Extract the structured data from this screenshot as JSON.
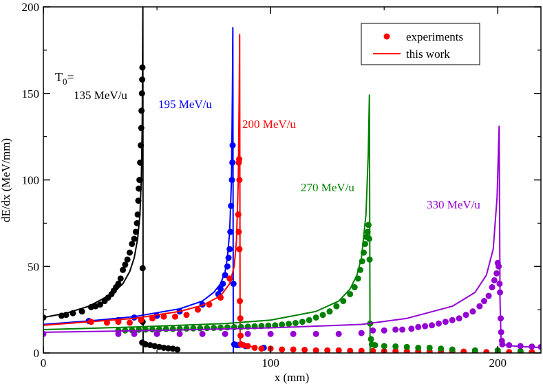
{
  "chart_data": {
    "type": "scatter",
    "title": "",
    "xlabel": "x (mm)",
    "ylabel": "dE/dx (MeV/mm)",
    "xlim": [
      0,
      219
    ],
    "ylim": [
      0,
      200
    ],
    "xticks": [
      0,
      100,
      200
    ],
    "xminor": [
      50,
      150
    ],
    "yticks": [
      0,
      50,
      100,
      150,
      200
    ],
    "yminor": [
      25,
      75,
      125,
      175
    ],
    "grid": false,
    "legend": {
      "placement": "top-right",
      "entries": [
        {
          "label": "experiments",
          "marker": "dot",
          "color": "#ff0000"
        },
        {
          "label": "this work",
          "marker": "line",
          "color": "#ff0000"
        }
      ]
    },
    "annotations": {
      "t0_prefix": "T",
      "t0_sub": "0",
      "t0_suffix": "="
    },
    "series": [
      {
        "label": "135 MeV/u",
        "color": "#000000",
        "theory": [
          [
            0,
            20.5
          ],
          [
            10,
            23
          ],
          [
            20,
            27
          ],
          [
            30,
            34
          ],
          [
            35,
            40
          ],
          [
            38,
            47
          ],
          [
            40,
            55
          ],
          [
            41.5,
            66
          ],
          [
            42.5,
            80
          ],
          [
            43.1,
            100
          ],
          [
            43.5,
            130
          ],
          [
            43.8,
            200
          ],
          [
            43.9,
            0
          ]
        ],
        "experiments": [
          [
            0,
            20.5
          ],
          [
            8,
            21.5
          ],
          [
            10,
            22
          ],
          [
            13,
            23
          ],
          [
            17,
            24
          ],
          [
            21,
            26.5
          ],
          [
            23,
            27
          ],
          [
            25,
            28
          ],
          [
            27,
            30
          ],
          [
            28.5,
            32
          ],
          [
            30,
            34
          ],
          [
            31,
            36
          ],
          [
            32,
            38
          ],
          [
            33,
            40
          ],
          [
            34,
            43
          ],
          [
            35,
            48
          ],
          [
            36,
            51
          ],
          [
            37,
            54
          ],
          [
            38,
            58
          ],
          [
            39,
            63
          ],
          [
            40,
            66
          ],
          [
            40.7,
            70
          ],
          [
            41.2,
            75
          ],
          [
            41.5,
            80
          ],
          [
            41.8,
            88
          ],
          [
            42,
            95
          ],
          [
            42.3,
            100
          ],
          [
            42.6,
            110
          ],
          [
            42.9,
            120
          ],
          [
            43.1,
            130
          ],
          [
            43.2,
            140
          ],
          [
            43.4,
            150
          ],
          [
            43.5,
            158
          ],
          [
            43.6,
            165
          ],
          [
            43.7,
            49
          ],
          [
            43.7,
            18
          ],
          [
            43.5,
            6
          ],
          [
            45,
            5
          ],
          [
            47,
            4.5
          ],
          [
            49,
            4
          ],
          [
            51,
            3.5
          ],
          [
            53,
            3
          ],
          [
            55,
            2.7
          ],
          [
            57,
            2.5
          ],
          [
            59,
            2
          ]
        ]
      },
      {
        "label": "195 MeV/u",
        "color": "#0000ff",
        "theory": [
          [
            0,
            16.5
          ],
          [
            20,
            18.5
          ],
          [
            40,
            21
          ],
          [
            60,
            25.5
          ],
          [
            70,
            30
          ],
          [
            75,
            35
          ],
          [
            78,
            40
          ],
          [
            80,
            47
          ],
          [
            81,
            55
          ],
          [
            82,
            70
          ],
          [
            82.8,
            100
          ],
          [
            83.2,
            150
          ],
          [
            83.4,
            188
          ],
          [
            83.6,
            0
          ]
        ],
        "experiments": [
          [
            20,
            18.5
          ],
          [
            33,
            19
          ],
          [
            40,
            20.5
          ],
          [
            50,
            21.5
          ],
          [
            60,
            24
          ],
          [
            70,
            28
          ],
          [
            77,
            34
          ],
          [
            78,
            37
          ],
          [
            79,
            40
          ],
          [
            80,
            45
          ],
          [
            81,
            50
          ],
          [
            81.5,
            55
          ],
          [
            82,
            60
          ],
          [
            82.3,
            70
          ],
          [
            82.6,
            85
          ],
          [
            83,
            100
          ],
          [
            83.2,
            110
          ],
          [
            83.3,
            120
          ],
          [
            83.7,
            40
          ],
          [
            84,
            5
          ],
          [
            85,
            4.5
          ],
          [
            86,
            4.5
          ],
          [
            89,
            4
          ],
          [
            97,
            3
          ]
        ]
      },
      {
        "label": "200 MeV/u",
        "color": "#ff0000",
        "theory": [
          [
            0,
            16
          ],
          [
            20,
            18
          ],
          [
            40,
            20
          ],
          [
            60,
            24
          ],
          [
            70,
            27.5
          ],
          [
            78,
            33
          ],
          [
            82,
            40
          ],
          [
            84,
            50
          ],
          [
            85,
            65
          ],
          [
            85.8,
            100
          ],
          [
            86.2,
            150
          ],
          [
            86.4,
            184
          ],
          [
            86.6,
            5
          ],
          [
            88,
            4.5
          ],
          [
            92,
            3.5
          ]
        ],
        "experiments": [
          [
            21,
            18
          ],
          [
            28,
            17.5
          ],
          [
            33,
            18
          ],
          [
            38,
            17.5
          ],
          [
            43,
            19
          ],
          [
            48,
            20
          ],
          [
            53,
            21
          ],
          [
            58,
            21
          ],
          [
            63,
            22
          ],
          [
            68,
            25
          ],
          [
            73,
            28
          ],
          [
            78,
            32
          ],
          [
            82,
            43
          ],
          [
            86,
            110
          ],
          [
            86.2,
            112
          ],
          [
            86.3,
            100
          ],
          [
            85.8,
            80
          ],
          [
            86,
            70
          ],
          [
            86.3,
            60
          ],
          [
            86.5,
            30
          ],
          [
            86.7,
            20
          ],
          [
            86.8,
            10
          ],
          [
            87,
            5
          ],
          [
            88,
            4.5
          ],
          [
            90,
            4
          ],
          [
            93,
            3
          ],
          [
            96,
            2.5
          ],
          [
            100,
            2.5
          ],
          [
            105,
            2
          ],
          [
            110,
            2
          ],
          [
            115,
            1.8
          ],
          [
            120,
            1.5
          ],
          [
            125,
            1.5
          ],
          [
            130,
            1.5
          ],
          [
            135,
            1.2
          ],
          [
            140,
            1.2
          ],
          [
            145,
            1.2
          ],
          [
            150,
            1
          ],
          [
            155,
            1
          ],
          [
            160,
            1
          ],
          [
            165,
            1
          ],
          [
            170,
            0.8
          ],
          [
            175,
            0.8
          ],
          [
            180,
            0.8
          ],
          [
            185,
            0.8
          ],
          [
            190,
            0.5
          ],
          [
            195,
            0.5
          ],
          [
            200,
            0.5
          ],
          [
            205,
            0.5
          ],
          [
            210,
            0.5
          ],
          [
            215,
            0.5
          ]
        ]
      },
      {
        "label": "270 MeV/u",
        "color": "#008000",
        "theory": [
          [
            0,
            13.5
          ],
          [
            40,
            15
          ],
          [
            80,
            17
          ],
          [
            100,
            19
          ],
          [
            120,
            24
          ],
          [
            130,
            30
          ],
          [
            135,
            37
          ],
          [
            138,
            45
          ],
          [
            140,
            55
          ],
          [
            142,
            80
          ],
          [
            143,
            115
          ],
          [
            143.5,
            149
          ],
          [
            143.8,
            0
          ]
        ],
        "experiments": [
          [
            33,
            13
          ],
          [
            36,
            13
          ],
          [
            39,
            13.2
          ],
          [
            42,
            13.4
          ],
          [
            45,
            13.5
          ],
          [
            48,
            13.6
          ],
          [
            51,
            13.7
          ],
          [
            54,
            13.8
          ],
          [
            57,
            13.9
          ],
          [
            60,
            14
          ],
          [
            63,
            14.1
          ],
          [
            66,
            14.2
          ],
          [
            69,
            14.3
          ],
          [
            72,
            14.4
          ],
          [
            75,
            14.5
          ],
          [
            78,
            14.6
          ],
          [
            81,
            14.8
          ],
          [
            84,
            14.9
          ],
          [
            87,
            15
          ],
          [
            90,
            15.2
          ],
          [
            93,
            15.4
          ],
          [
            96,
            15.6
          ],
          [
            99,
            15.8
          ],
          [
            102,
            16
          ],
          [
            105,
            16.4
          ],
          [
            108,
            16.8
          ],
          [
            111,
            17.3
          ],
          [
            114,
            18
          ],
          [
            117,
            19
          ],
          [
            120,
            20.5
          ],
          [
            123,
            22
          ],
          [
            126,
            24
          ],
          [
            129,
            27
          ],
          [
            132,
            30
          ],
          [
            135,
            34
          ],
          [
            137,
            38
          ],
          [
            138.5,
            43
          ],
          [
            139.5,
            48
          ],
          [
            140.3,
            53
          ],
          [
            141,
            58
          ],
          [
            141.6,
            63
          ],
          [
            142.2,
            67
          ],
          [
            142.7,
            70
          ],
          [
            143.1,
            74
          ],
          [
            143.4,
            66
          ],
          [
            143.6,
            54
          ],
          [
            143.8,
            17
          ],
          [
            144.2,
            8
          ],
          [
            144.6,
            5
          ],
          [
            146,
            4.5
          ],
          [
            150,
            4
          ],
          [
            155,
            3.8
          ],
          [
            160,
            3.5
          ],
          [
            165,
            3
          ],
          [
            170,
            3
          ],
          [
            175,
            2.5
          ],
          [
            180,
            2
          ],
          [
            190,
            1.5
          ],
          [
            200,
            1.5
          ],
          [
            210,
            1
          ]
        ]
      },
      {
        "label": "330 MeV/u",
        "color": "#9400d3",
        "theory": [
          [
            0,
            12
          ],
          [
            50,
            13
          ],
          [
            100,
            14.5
          ],
          [
            140,
            16.5
          ],
          [
            160,
            20
          ],
          [
            180,
            27
          ],
          [
            190,
            35
          ],
          [
            195,
            45
          ],
          [
            198,
            60
          ],
          [
            199.7,
            90
          ],
          [
            200.6,
            131
          ],
          [
            201,
            30
          ],
          [
            201.5,
            5
          ],
          [
            205,
            4.2
          ],
          [
            212,
            3.6
          ],
          [
            219,
            3.2
          ]
        ],
        "experiments": [
          [
            0,
            11
          ],
          [
            33,
            11
          ],
          [
            40,
            11
          ],
          [
            50,
            11
          ],
          [
            60,
            11
          ],
          [
            70,
            11
          ],
          [
            80,
            11
          ],
          [
            90,
            11
          ],
          [
            100,
            11
          ],
          [
            110,
            11
          ],
          [
            120,
            11
          ],
          [
            130,
            11
          ],
          [
            140,
            11.5
          ],
          [
            145,
            13
          ],
          [
            150,
            13
          ],
          [
            155,
            13.5
          ],
          [
            158,
            13.5
          ],
          [
            162,
            14
          ],
          [
            165,
            15
          ],
          [
            168,
            15.5
          ],
          [
            171,
            16
          ],
          [
            174,
            17
          ],
          [
            177,
            18
          ],
          [
            180,
            19
          ],
          [
            183,
            20
          ],
          [
            186,
            22
          ],
          [
            189,
            24
          ],
          [
            192,
            27
          ],
          [
            194,
            30
          ],
          [
            196,
            33
          ],
          [
            197.5,
            38
          ],
          [
            198.5,
            42
          ],
          [
            199.5,
            46
          ],
          [
            200,
            52
          ],
          [
            200.4,
            50
          ],
          [
            200.8,
            40
          ],
          [
            201,
            35
          ],
          [
            201.3,
            20
          ],
          [
            201.5,
            12
          ],
          [
            201.8,
            7
          ],
          [
            202,
            5
          ],
          [
            205,
            4.5
          ],
          [
            210,
            4
          ],
          [
            215,
            3.7
          ],
          [
            219,
            3.5
          ]
        ]
      }
    ]
  }
}
